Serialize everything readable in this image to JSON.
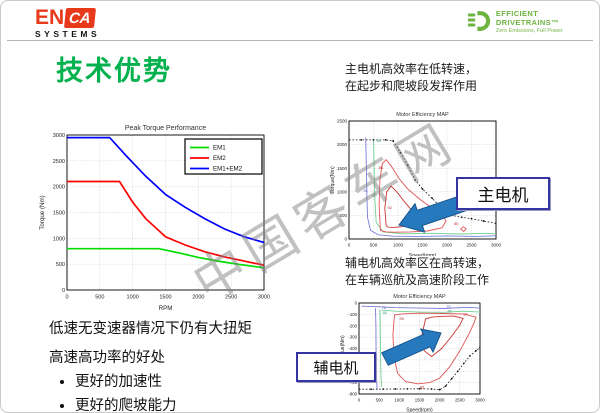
{
  "header": {
    "enca": {
      "main": "EN",
      "box": "CA",
      "sub": "SYSTEMS"
    },
    "ed": {
      "title": "EFFICIENT DRIVETRAINS™",
      "tagline": "Zero Emissions, Full Power"
    }
  },
  "title": "技术优势",
  "notes": {
    "main_motor": "主电机高效率在低转速，在起步和爬坡段发挥作用",
    "aux_motor": "辅电机高效率区在高转速，在车辆巡航及高速阶段工作"
  },
  "callouts": {
    "main_motor": "主电机",
    "aux_motor": "辅电机"
  },
  "bottom": {
    "line1": "低速无变速器情况下仍有大扭矩",
    "line2": "高速高功率的好处",
    "bullets": [
      "更好的加速性",
      "更好的爬坡能力"
    ]
  },
  "watermark": "中国客车网",
  "colors": {
    "title_green": "#00b14d",
    "logo_red": "#e8391b",
    "logo_green": "#6db33f",
    "arrow_blue": "#2779be",
    "callout_border": "#3434a3",
    "em1_green": "#00dd00",
    "em2_red": "#ff0000",
    "em12_blue": "#0000ff"
  },
  "chart_data": [
    {
      "id": "torque",
      "type": "line",
      "title": "Peak Torque Performance",
      "xlabel": "RPM",
      "ylabel": "Torque (Nm)",
      "xlim": [
        0,
        3000
      ],
      "ylim": [
        0,
        3000
      ],
      "xticks": [
        0,
        500,
        1000,
        1500,
        2000,
        2500,
        3000
      ],
      "yticks": [
        0,
        500,
        1000,
        1500,
        2000,
        2500,
        3000
      ],
      "grid": true,
      "legend_position": "top-right",
      "series": [
        {
          "name": "EM1",
          "color": "#00dd00",
          "points": [
            [
              0,
              800
            ],
            [
              1400,
              800
            ],
            [
              1700,
              720
            ],
            [
              2000,
              630
            ],
            [
              2300,
              560
            ],
            [
              2600,
              500
            ],
            [
              3000,
              430
            ]
          ]
        },
        {
          "name": "EM2",
          "color": "#ff0000",
          "points": [
            [
              0,
              2100
            ],
            [
              800,
              2100
            ],
            [
              1000,
              1700
            ],
            [
              1200,
              1380
            ],
            [
              1500,
              1030
            ],
            [
              1800,
              870
            ],
            [
              2100,
              740
            ],
            [
              2400,
              640
            ],
            [
              2700,
              560
            ],
            [
              3000,
              480
            ]
          ]
        },
        {
          "name": "EM1+EM2",
          "color": "#0000ff",
          "points": [
            [
              0,
              2950
            ],
            [
              650,
              2950
            ],
            [
              900,
              2600
            ],
            [
              1200,
              2200
            ],
            [
              1500,
              1850
            ],
            [
              1800,
              1600
            ],
            [
              2100,
              1380
            ],
            [
              2400,
              1180
            ],
            [
              2700,
              1030
            ],
            [
              3000,
              920
            ]
          ]
        }
      ]
    },
    {
      "id": "map1",
      "type": "contour-map",
      "title": "Motor Efficiency MAP",
      "xlabel": "Speed(rpm)",
      "ylabel": "Torque(Nm)",
      "xlim": [
        0,
        3000
      ],
      "ylim": [
        0,
        2500
      ],
      "xticks": [
        0,
        500,
        1000,
        1500,
        2000,
        2500,
        3000
      ],
      "yticks": [
        0,
        500,
        1000,
        1500,
        2000,
        2500
      ],
      "grid": true,
      "envelope": [
        [
          0,
          2100
        ],
        [
          250,
          2100
        ],
        [
          500,
          2100
        ],
        [
          750,
          2100
        ],
        [
          900,
          2080
        ],
        [
          1050,
          1830
        ],
        [
          1200,
          1560
        ],
        [
          1350,
          1250
        ],
        [
          1500,
          1060
        ],
        [
          1700,
          860
        ],
        [
          1900,
          640
        ],
        [
          2100,
          500
        ],
        [
          2300,
          460
        ],
        [
          2500,
          430
        ],
        [
          2750,
          380
        ],
        [
          3000,
          330
        ]
      ],
      "contours": [
        {
          "level": "70",
          "color": "#7b7bdc",
          "closed": false,
          "points": [
            [
              340,
              2150
            ],
            [
              355,
              1500
            ],
            [
              365,
              900
            ],
            [
              380,
              450
            ],
            [
              440,
              180
            ],
            [
              600,
              90
            ],
            [
              900,
              60
            ],
            [
              1400,
              55
            ],
            [
              2000,
              65
            ],
            [
              2600,
              55
            ],
            [
              3000,
              70
            ]
          ]
        },
        {
          "level": "80",
          "color": "#6fcf97",
          "closed": false,
          "points": [
            [
              500,
              2120
            ],
            [
              515,
              1500
            ],
            [
              525,
              900
            ],
            [
              555,
              350
            ],
            [
              700,
              150
            ],
            [
              1100,
              110
            ],
            [
              1700,
              120
            ],
            [
              2300,
              105
            ],
            [
              2800,
              120
            ],
            [
              3000,
              110
            ]
          ]
        },
        {
          "level": "85",
          "color": "#e05555",
          "closed": true,
          "points": [
            [
              640,
              180
            ],
            [
              615,
              700
            ],
            [
              630,
              1250
            ],
            [
              680,
              1600
            ],
            [
              760,
              1680
            ],
            [
              880,
              1520
            ],
            [
              1020,
              1280
            ],
            [
              1200,
              1060
            ],
            [
              1450,
              840
            ],
            [
              1700,
              650
            ],
            [
              1900,
              520
            ],
            [
              1980,
              380
            ],
            [
              1900,
              240
            ],
            [
              1600,
              170
            ],
            [
              1250,
              150
            ],
            [
              950,
              145
            ],
            [
              760,
              150
            ]
          ]
        },
        {
          "level": "92",
          "color": "#cc3333",
          "closed": true,
          "points": [
            [
              760,
              280
            ],
            [
              730,
              650
            ],
            [
              770,
              1000
            ],
            [
              860,
              1120
            ],
            [
              990,
              980
            ],
            [
              1130,
              790
            ],
            [
              1270,
              620
            ],
            [
              1360,
              470
            ],
            [
              1300,
              330
            ],
            [
              1080,
              260
            ],
            [
              900,
              245
            ],
            [
              800,
              250
            ]
          ]
        },
        {
          "level": "85",
          "color": "#e05555",
          "closed": true,
          "points": [
            [
              2280,
              210
            ],
            [
              2330,
              260
            ],
            [
              2390,
              215
            ],
            [
              2340,
              160
            ]
          ]
        }
      ],
      "contour_labels": [
        {
          "text": "70",
          "x": 330,
          "y": 1000,
          "color": "#5555bb"
        },
        {
          "text": "80",
          "x": 520,
          "y": 900,
          "color": "#3f9f6f"
        },
        {
          "text": "80",
          "x": 610,
          "y": 2050,
          "color": "#3f9f6f"
        },
        {
          "text": "85",
          "x": 650,
          "y": 1480,
          "color": "#bb3333"
        },
        {
          "text": "92",
          "x": 830,
          "y": 640,
          "color": "#bb3333"
        },
        {
          "text": "85",
          "x": 2190,
          "y": 300,
          "color": "#bb3333"
        }
      ]
    },
    {
      "id": "map2",
      "type": "contour-map",
      "title": "Motor Efficiency MAP",
      "xlabel": "Speed(rpm)",
      "ylabel": "Torque(Nm)",
      "xlim": [
        0,
        3000
      ],
      "ylim": [
        -800,
        0
      ],
      "xticks": [
        0,
        500,
        1000,
        1500,
        2000,
        2500,
        3000
      ],
      "yticks": [
        0,
        -100,
        -200,
        -300,
        -400,
        -500,
        -600,
        -700,
        -800
      ],
      "grid": true,
      "envelope": [
        [
          0,
          -758
        ],
        [
          300,
          -758
        ],
        [
          600,
          -757
        ],
        [
          900,
          -756
        ],
        [
          1200,
          -755
        ],
        [
          1500,
          -754
        ],
        [
          1800,
          -756
        ],
        [
          2000,
          -762
        ],
        [
          2150,
          -730
        ],
        [
          2300,
          -665
        ],
        [
          2450,
          -600
        ],
        [
          2600,
          -530
        ],
        [
          2750,
          -465
        ],
        [
          2900,
          -420
        ],
        [
          3000,
          -392
        ]
      ],
      "contours": [
        {
          "level": "70",
          "color": "#7b7bdc",
          "closed": false,
          "points": [
            [
              60,
              -28
            ],
            [
              400,
              -32
            ],
            [
              900,
              -40
            ],
            [
              1500,
              -45
            ],
            [
              2100,
              -48
            ],
            [
              2700,
              -38
            ],
            [
              3000,
              -45
            ]
          ]
        },
        {
          "level": "70",
          "color": "#7b7bdc",
          "closed": false,
          "points": [
            [
              410,
              -45
            ],
            [
              420,
              -200
            ],
            [
              425,
              -450
            ],
            [
              435,
              -650
            ],
            [
              450,
              -762
            ]
          ]
        },
        {
          "level": "80",
          "color": "#6fcf97",
          "closed": false,
          "points": [
            [
              520,
              -60
            ],
            [
              528,
              -250
            ],
            [
              535,
              -480
            ],
            [
              545,
              -650
            ],
            [
              565,
              -738
            ]
          ]
        },
        {
          "level": "80",
          "color": "#6fcf97",
          "closed": false,
          "points": [
            [
              560,
              -62
            ],
            [
              900,
              -72
            ],
            [
              1500,
              -80
            ],
            [
              2100,
              -82
            ],
            [
              2600,
              -72
            ],
            [
              3000,
              -80
            ]
          ]
        },
        {
          "level": "90",
          "color": "#e05555",
          "closed": true,
          "points": [
            [
              880,
              -105
            ],
            [
              840,
              -280
            ],
            [
              870,
              -480
            ],
            [
              960,
              -620
            ],
            [
              1150,
              -690
            ],
            [
              1450,
              -710
            ],
            [
              1750,
              -700
            ],
            [
              2000,
              -660
            ],
            [
              2250,
              -560
            ],
            [
              2500,
              -420
            ],
            [
              2700,
              -290
            ],
            [
              2850,
              -180
            ],
            [
              2900,
              -125
            ],
            [
              2600,
              -98
            ],
            [
              2100,
              -92
            ],
            [
              1500,
              -90
            ],
            [
              1100,
              -95
            ]
          ]
        },
        {
          "level": "92",
          "color": "#cc3333",
          "closed": true,
          "points": [
            [
              1650,
              -140
            ],
            [
              1560,
              -280
            ],
            [
              1620,
              -420
            ],
            [
              1800,
              -470
            ],
            [
              2050,
              -400
            ],
            [
              2300,
              -290
            ],
            [
              2500,
              -195
            ],
            [
              2580,
              -135
            ],
            [
              2350,
              -115
            ],
            [
              2000,
              -118
            ],
            [
              1800,
              -125
            ]
          ]
        }
      ],
      "contour_labels": [
        {
          "text": "70",
          "x": 620,
          "y": -52,
          "color": "#5555bb"
        },
        {
          "text": "70",
          "x": 2220,
          "y": -46,
          "color": "#5555bb"
        },
        {
          "text": "80",
          "x": 640,
          "y": -95,
          "color": "#3f9f6f"
        },
        {
          "text": "80",
          "x": 2250,
          "y": -82,
          "color": "#3f9f6f"
        },
        {
          "text": "90",
          "x": 1060,
          "y": -150,
          "color": "#bb3333"
        },
        {
          "text": "92",
          "x": 2640,
          "y": -108,
          "color": "#bb3333"
        },
        {
          "text": "85",
          "x": 870,
          "y": -430,
          "color": "#bb3333"
        },
        {
          "text": "85",
          "x": 1560,
          "y": -752,
          "color": "#bb3333"
        }
      ]
    }
  ]
}
